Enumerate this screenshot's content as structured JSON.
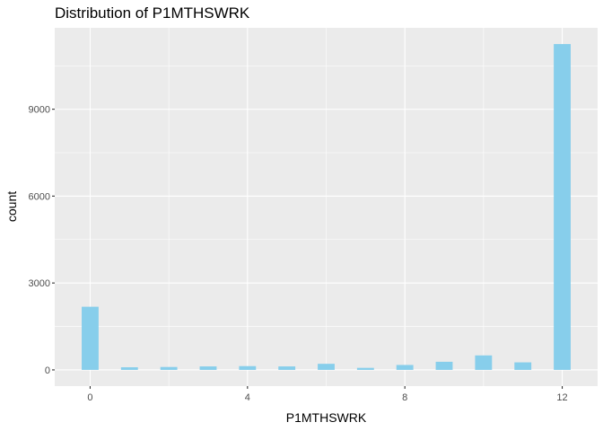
{
  "chart_data": {
    "type": "bar",
    "title": "Distribution of P1MTHSWRK",
    "xlabel": "P1MTHSWRK",
    "ylabel": "count",
    "x": [
      0,
      1,
      2,
      3,
      4,
      5,
      6,
      7,
      8,
      9,
      10,
      11,
      12
    ],
    "values": [
      2180,
      90,
      100,
      120,
      130,
      120,
      210,
      70,
      170,
      280,
      500,
      260,
      11250
    ],
    "xlim": [
      -0.9,
      12.9
    ],
    "ylim": [
      -560,
      11810
    ],
    "x_ticks": [
      "0",
      "4",
      "8",
      "12"
    ],
    "y_ticks": [
      "0",
      "3000",
      "6000",
      "9000"
    ],
    "grid": true,
    "bar_color": "#87CEEB",
    "panel_background": "#EBEBEB",
    "grid_color": "#FFFFFF"
  }
}
